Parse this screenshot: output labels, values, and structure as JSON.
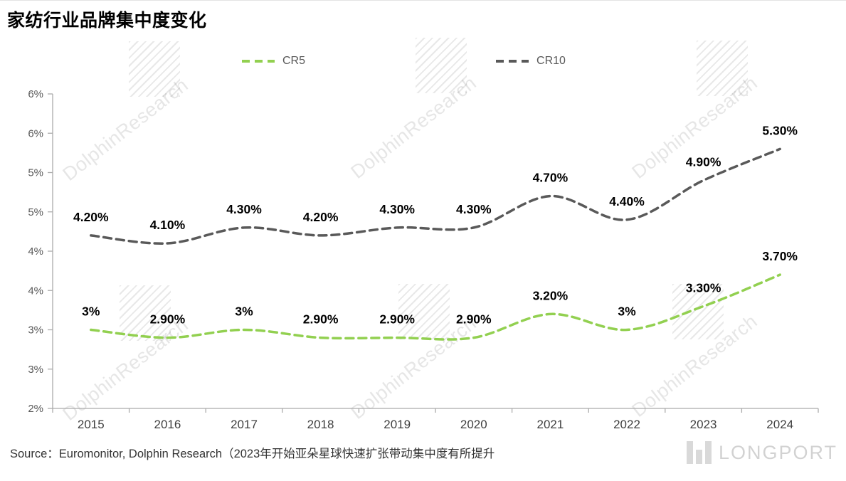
{
  "watermark": {
    "text": "DolphinResearch"
  },
  "footer": {
    "source": "Source：Euromonitor, Dolphin Research（2023年开始亚朵星球快速扩张带动集中度有所提升",
    "logo_text": "LONGPORT"
  },
  "chart_data": {
    "type": "line",
    "title": "家纺行业品牌集中度变化",
    "line_style": "dashed-smooth",
    "grid": false,
    "legend_position": "top",
    "categories": [
      "2015",
      "2016",
      "2017",
      "2018",
      "2019",
      "2020",
      "2021",
      "2022",
      "2023",
      "2024"
    ],
    "series": [
      {
        "name": "CR5",
        "color": "#92d050",
        "values": [
          3,
          2.9,
          3,
          2.9,
          2.9,
          2.9,
          3.2,
          3,
          3.3,
          3.7
        ],
        "point_labels": [
          "3%",
          "2.90%",
          "3%",
          "2.90%",
          "2.90%",
          "2.90%",
          "3.20%",
          "3%",
          "3.30%",
          "3.70%"
        ]
      },
      {
        "name": "CR10",
        "color": "#595959",
        "values": [
          4.2,
          4.1,
          4.3,
          4.2,
          4.3,
          4.3,
          4.7,
          4.4,
          4.9,
          5.3
        ],
        "point_labels": [
          "4.20%",
          "4.10%",
          "4.30%",
          "4.20%",
          "4.30%",
          "4.30%",
          "4.70%",
          "4.40%",
          "4.90%",
          "5.30%"
        ]
      }
    ],
    "y_axis": {
      "min": 2,
      "max": 6,
      "step": 0.5,
      "tick_values_top_to_bottom": [
        6,
        5.5,
        5,
        4.5,
        4,
        3.5,
        3,
        2.5,
        2
      ],
      "tick_labels_top_to_bottom": [
        "6%",
        "6%",
        "5%",
        "5%",
        "4%",
        "4%",
        "3%",
        "3%",
        "2%"
      ]
    },
    "colors": {
      "axis": "#ababab",
      "year_labels": "#3f3f3f",
      "tick_labels": "#595959",
      "data_labels": "#000000"
    }
  }
}
